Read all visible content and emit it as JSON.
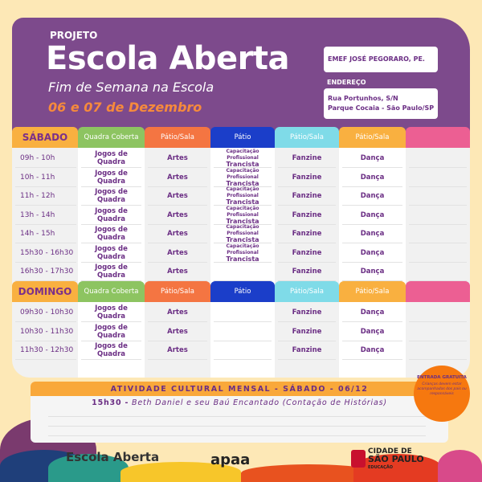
{
  "header": {
    "project": "PROJETO",
    "title": "Escola Aberta",
    "subtitle": "Fim de Semana na Escola",
    "dates": "06 e 07 de Dezembro",
    "school": "EMEF JOSÉ PEGORARO, PE.",
    "address_label": "ENDEREÇO",
    "address_line1": "Rua Portunhos, S/N",
    "address_line2": "Parque Cocaia - São Paulo/SP"
  },
  "colors": {
    "purple": "#7d4a8c",
    "orange": "#f68a3c",
    "green": "#8dc461",
    "coral": "#f47542",
    "blue": "#1b3ec9",
    "cyan": "#7fdbe8",
    "amber": "#f9b040",
    "pink": "#ec5f93"
  },
  "columns": [
    "Quadra Coberta",
    "Pátio/Sala",
    "Pátio",
    "Pátio/Sala",
    "Pátio/Sala",
    ""
  ],
  "saturday": {
    "label": "SÁBADO",
    "rows": [
      {
        "time": "09h - 10h",
        "c": [
          "Jogos de Quadra",
          "Artes",
          "Capacitação Profissional|Trancista",
          "Fanzine",
          "Dança",
          ""
        ]
      },
      {
        "time": "10h - 11h",
        "c": [
          "Jogos de Quadra",
          "Artes",
          "Capacitação Profissional|Trancista",
          "Fanzine",
          "Dança",
          ""
        ]
      },
      {
        "time": "11h - 12h",
        "c": [
          "Jogos de Quadra",
          "Artes",
          "Capacitação Profissional|Trancista",
          "Fanzine",
          "Dança",
          ""
        ]
      },
      {
        "time": "13h - 14h",
        "c": [
          "Jogos de Quadra",
          "Artes",
          "Capacitação Profissional|Trancista",
          "Fanzine",
          "Dança",
          ""
        ]
      },
      {
        "time": "14h - 15h",
        "c": [
          "Jogos de Quadra",
          "Artes",
          "Capacitação Profissional|Trancista",
          "Fanzine",
          "Dança",
          ""
        ]
      },
      {
        "time": "15h30 - 16h30",
        "c": [
          "Jogos de Quadra",
          "Artes",
          "Capacitação Profissional|Trancista",
          "Fanzine",
          "Dança",
          ""
        ]
      },
      {
        "time": "16h30 - 17h30",
        "c": [
          "Jogos de Quadra",
          "Artes",
          "",
          "Fanzine",
          "Dança",
          ""
        ]
      }
    ]
  },
  "sunday": {
    "label": "DOMINGO",
    "rows": [
      {
        "time": "09h30 - 10h30",
        "c": [
          "Jogos de Quadra",
          "Artes",
          "",
          "Fanzine",
          "Dança",
          ""
        ]
      },
      {
        "time": "10h30 - 11h30",
        "c": [
          "Jogos de Quadra",
          "Artes",
          "",
          "Fanzine",
          "Dança",
          ""
        ]
      },
      {
        "time": "11h30 - 12h30",
        "c": [
          "Jogos de Quadra",
          "Artes",
          "",
          "Fanzine",
          "Dança",
          ""
        ]
      }
    ]
  },
  "cultural": {
    "title": "ATIVIDADE CULTURAL MENSAL - SÁBADO - 06/12",
    "time": "15h30 -",
    "event": "Beth Daniel e seu Baú Encantado (Contação de Histórias)"
  },
  "badge": {
    "title": "ENTRADA GRATUITA",
    "note": "Crianças devem estar acompanhadas dos pais ou responsáveis"
  },
  "logos": {
    "escola": "Escola Aberta",
    "apaa": "apaa",
    "sp_line1": "CIDADE DE",
    "sp_line2": "SÃO PAULO",
    "sp_line3": "EDUCAÇÃO"
  }
}
